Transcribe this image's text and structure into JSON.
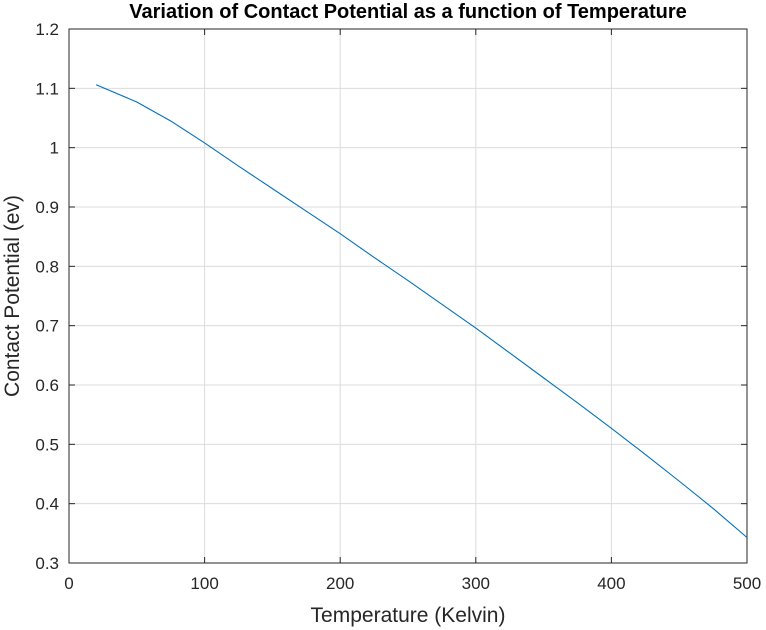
{
  "chart_data": {
    "type": "line",
    "title": "Variation of Contact Potential as a function of Temperature",
    "xlabel": "Temperature (Kelvin)",
    "ylabel": "Contact Potential (ev)",
    "xlim": [
      0,
      500
    ],
    "ylim": [
      0.3,
      1.2
    ],
    "xticks": [
      0,
      100,
      200,
      300,
      400,
      500
    ],
    "yticks": [
      0.3,
      0.4,
      0.5,
      0.6,
      0.7,
      0.8,
      0.9,
      1,
      1.1,
      1.2
    ],
    "xtick_labels": [
      "0",
      "100",
      "200",
      "300",
      "400",
      "500"
    ],
    "ytick_labels": [
      "0.3",
      "0.4",
      "0.5",
      "0.6",
      "0.7",
      "0.8",
      "0.9",
      "1",
      "1.1",
      "1.2"
    ],
    "grid": true,
    "series": [
      {
        "color": "#0072bd",
        "x": [
          20,
          50,
          75,
          100,
          125,
          150,
          175,
          200,
          225,
          250,
          275,
          300,
          325,
          350,
          375,
          400,
          425,
          450,
          475,
          500
        ],
        "y": [
          1.106,
          1.077,
          1.045,
          1.008,
          0.969,
          0.931,
          0.893,
          0.855,
          0.815,
          0.776,
          0.736,
          0.696,
          0.654,
          0.612,
          0.57,
          0.527,
          0.483,
          0.438,
          0.392,
          0.343
        ]
      }
    ]
  }
}
